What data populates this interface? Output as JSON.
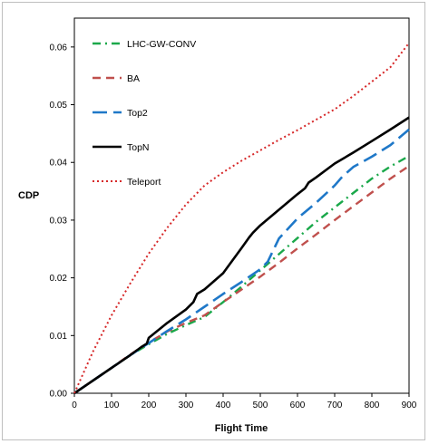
{
  "chart_data": {
    "type": "line",
    "title": "",
    "xlabel": "Flight Time",
    "ylabel": "CDP",
    "xlim": [
      0,
      900
    ],
    "ylim": [
      0,
      0.065
    ],
    "xticks": [
      0,
      100,
      200,
      300,
      400,
      500,
      600,
      700,
      800,
      900
    ],
    "yticks": [
      0.0,
      0.01,
      0.02,
      0.03,
      0.04,
      0.05,
      0.06
    ],
    "xtick_labels": [
      "0",
      "100",
      "200",
      "300",
      "400",
      "500",
      "600",
      "700",
      "800",
      "900"
    ],
    "ytick_labels": [
      "0.00",
      "0.01",
      "0.02",
      "0.03",
      "0.04",
      "0.05",
      "0.06"
    ],
    "grid": false,
    "legend_position": "top-left",
    "series": [
      {
        "name": "LHC-GW-CONV",
        "color": "#1aa84a",
        "dash": "dashdot",
        "x": [
          0,
          50,
          100,
          150,
          200,
          250,
          300,
          350,
          400,
          450,
          500,
          550,
          600,
          650,
          700,
          750,
          800,
          850,
          900
        ],
        "y": [
          0.0,
          0.0022,
          0.0044,
          0.0066,
          0.0085,
          0.0103,
          0.0118,
          0.0132,
          0.0158,
          0.0185,
          0.0213,
          0.0241,
          0.0269,
          0.0297,
          0.0322,
          0.0347,
          0.0372,
          0.0393,
          0.0411
        ]
      },
      {
        "name": "BA",
        "color": "#c0504d",
        "dash": "dash",
        "x": [
          0,
          50,
          100,
          150,
          200,
          250,
          300,
          350,
          400,
          450,
          500,
          550,
          600,
          650,
          700,
          750,
          800,
          850,
          900
        ],
        "y": [
          0.0,
          0.0022,
          0.0044,
          0.0067,
          0.0088,
          0.0107,
          0.0122,
          0.0135,
          0.0158,
          0.018,
          0.0202,
          0.0226,
          0.0251,
          0.0275,
          0.03,
          0.0324,
          0.0348,
          0.0372,
          0.0394
        ]
      },
      {
        "name": "Top2",
        "color": "#1f78c8",
        "dash": "longdash",
        "x": [
          0,
          50,
          100,
          150,
          200,
          250,
          300,
          350,
          400,
          450,
          500,
          520,
          550,
          600,
          650,
          700,
          720,
          750,
          800,
          850,
          900
        ],
        "y": [
          0.0,
          0.0022,
          0.0044,
          0.0066,
          0.0087,
          0.0108,
          0.0128,
          0.015,
          0.0172,
          0.0193,
          0.0215,
          0.0228,
          0.0268,
          0.0303,
          0.033,
          0.036,
          0.0375,
          0.0392,
          0.041,
          0.043,
          0.0457
        ]
      },
      {
        "name": "TopN",
        "color": "#000000",
        "dash": "solid",
        "x": [
          0,
          50,
          100,
          150,
          180,
          195,
          200,
          250,
          300,
          320,
          330,
          350,
          400,
          450,
          470,
          480,
          500,
          550,
          600,
          620,
          630,
          650,
          700,
          750,
          800,
          850,
          900
        ],
        "y": [
          0.0,
          0.0022,
          0.0044,
          0.0066,
          0.008,
          0.0086,
          0.0096,
          0.0122,
          0.0145,
          0.0158,
          0.0172,
          0.018,
          0.0208,
          0.0252,
          0.027,
          0.0278,
          0.0291,
          0.0318,
          0.0345,
          0.0355,
          0.0365,
          0.0374,
          0.0398,
          0.0417,
          0.0437,
          0.0457,
          0.0478
        ]
      },
      {
        "name": "Teleport",
        "color": "#d62728",
        "dash": "dot",
        "x": [
          0,
          50,
          100,
          150,
          200,
          250,
          300,
          350,
          400,
          450,
          500,
          550,
          600,
          650,
          700,
          750,
          800,
          850,
          900
        ],
        "y": [
          0.0,
          0.0072,
          0.0135,
          0.019,
          0.0242,
          0.0287,
          0.0327,
          0.036,
          0.0383,
          0.0403,
          0.0421,
          0.0439,
          0.0456,
          0.0474,
          0.0492,
          0.0515,
          0.054,
          0.0565,
          0.0607
        ]
      }
    ]
  }
}
